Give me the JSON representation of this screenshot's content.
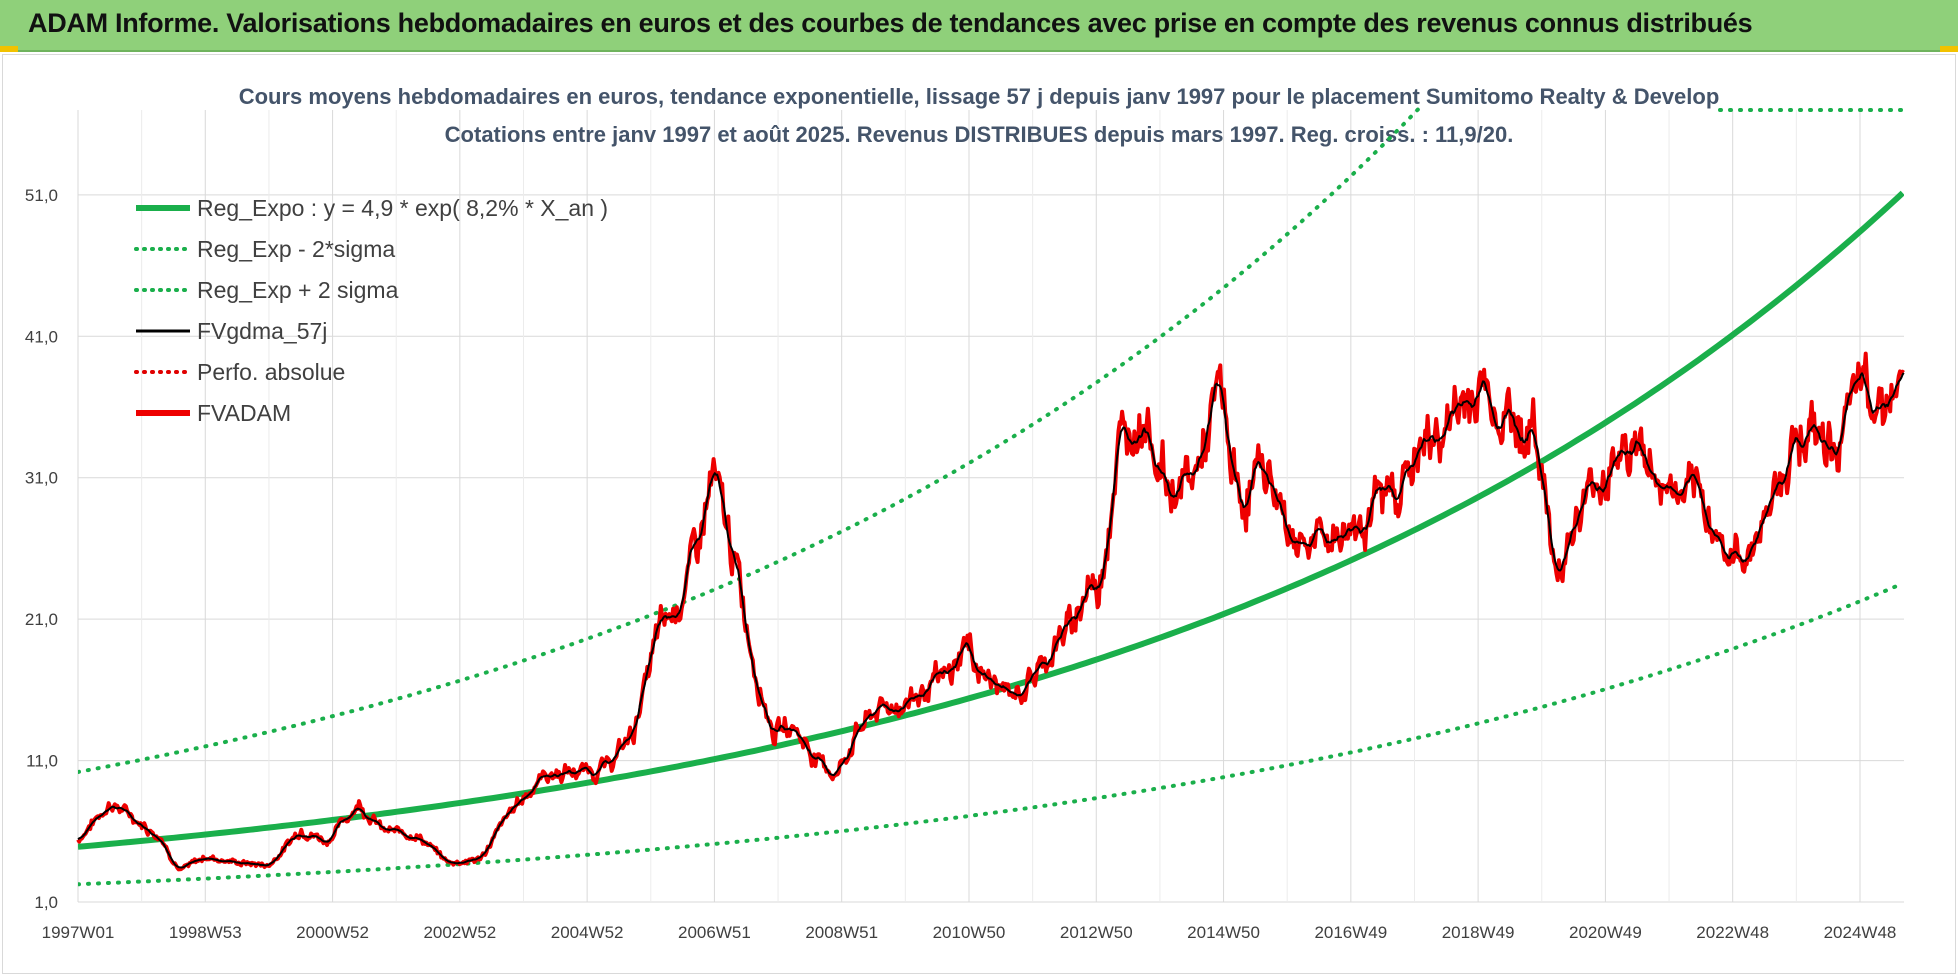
{
  "header": {
    "title": "ADAM Informe. Valorisations hebdomadaires en euros et des courbes de tendances avec prise en compte des revenus connus distribués"
  },
  "colors": {
    "banner": "#8fd07a",
    "reg_expo": "#1aaf4b",
    "sigma": "#1aaf4b",
    "smooth": "#000000",
    "perfo": "#e00000",
    "fvadam": "#ee0000"
  },
  "chart_data": {
    "type": "line",
    "title": "Cours moyens hebdomadaires en euros, tendance exponentielle, lissage 57 j depuis janv 1997 pour le placement Sumitomo Realty & Develop",
    "subtitle": "Cotations entre janv 1997 et août 2025.  Revenus DISTRIBUES depuis mars 1997. Reg. croiss. : 11,9/20.",
    "xlabel": "",
    "ylabel": "",
    "ylim": [
      1,
      57
    ],
    "y_ticks": [
      "1,0",
      "11,0",
      "21,0",
      "31,0",
      "41,0",
      "51,0"
    ],
    "x_ticks": [
      "1997W01",
      "1998W53",
      "2000W52",
      "2002W52",
      "2004W52",
      "2006W51",
      "2008W51",
      "2010W50",
      "2012W50",
      "2014W50",
      "2016W49",
      "2018W49",
      "2020W49",
      "2022W48",
      "2024W48"
    ],
    "grid": true,
    "legend_position": "top-left",
    "legend": [
      {
        "label": "Reg_Expo : y = 4,9 * exp( 8,2% *  X_an )",
        "style": "solid-thick",
        "color": "#1aaf4b"
      },
      {
        "label": "Reg_Exp - 2*sigma",
        "style": "dotted",
        "color": "#1aaf4b"
      },
      {
        "label": "Reg_Exp + 2 sigma",
        "style": "dotted",
        "color": "#1aaf4b"
      },
      {
        "label": "FVgdma_57j",
        "style": "solid",
        "color": "#000000"
      },
      {
        "label": "Perfo. absolue",
        "style": "dotted",
        "color": "#e00000"
      },
      {
        "label": "FVADAM",
        "style": "solid-thick",
        "color": "#ee0000"
      }
    ],
    "regression": {
      "a": 4.9,
      "rate": 0.082,
      "lower_factor": 0.46,
      "upper_factor": 2.08
    },
    "fvadam": {
      "x": [
        1997.0,
        1997.5,
        1997.8,
        1998.3,
        1998.6,
        1999.0,
        1999.5,
        2000.0,
        2000.5,
        2000.9,
        2001.4,
        2001.8,
        2002.3,
        2002.8,
        2003.3,
        2003.8,
        2004.3,
        2004.8,
        2005.3,
        2005.7,
        2006.1,
        2006.4,
        2006.7,
        2006.95,
        2007.3,
        2007.6,
        2007.9,
        2008.2,
        2008.6,
        2008.9,
        2009.2,
        2009.5,
        2009.9,
        2010.3,
        2010.7,
        2010.9,
        2011.2,
        2011.6,
        2011.9,
        2012.3,
        2012.55,
        2012.85,
        2013.0,
        2013.3,
        2013.7,
        2014.1,
        2014.5,
        2014.9,
        2015.2,
        2015.6,
        2016.0,
        2016.4,
        2016.8,
        2017.2,
        2017.6,
        2017.9,
        2018.3,
        2018.7,
        2019.0,
        2019.4,
        2019.8,
        2020.0,
        2020.1,
        2020.3,
        2020.7,
        2021.0,
        2021.4,
        2021.8,
        2022.2,
        2022.6,
        2022.9,
        2023.2,
        2023.6,
        2024.0,
        2024.4,
        2024.8,
        2025.0,
        2025.3,
        2025.6
      ],
      "y": [
        5.4,
        8.0,
        7.2,
        5.6,
        3.2,
        4.2,
        3.8,
        3.6,
        6.2,
        5.3,
        8.0,
        6.0,
        5.8,
        3.8,
        4.0,
        7.5,
        10.0,
        10.2,
        10.5,
        13.0,
        20.0,
        22.0,
        26.0,
        31.0,
        25.0,
        18.0,
        13.0,
        13.5,
        11.0,
        10.0,
        13.0,
        14.5,
        15.0,
        16.0,
        17.0,
        19.5,
        17.0,
        15.5,
        16.5,
        19.0,
        20.5,
        23.5,
        23.0,
        33.0,
        36.0,
        30.0,
        31.0,
        37.0,
        29.0,
        32.0,
        27.0,
        26.5,
        27.0,
        28.5,
        30.0,
        32.0,
        34.0,
        36.0,
        37.5,
        35.5,
        34.0,
        31.0,
        25.0,
        26.0,
        30.0,
        32.0,
        33.5,
        30.5,
        29.5,
        28.5,
        25.0,
        26.0,
        30.0,
        35.0,
        33.0,
        35.0,
        38.0,
        37.0,
        37.0
      ]
    }
  }
}
